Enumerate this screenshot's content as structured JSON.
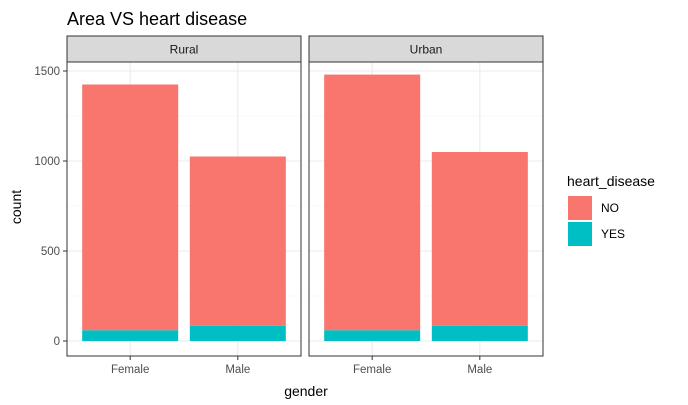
{
  "chart_data": {
    "type": "bar",
    "stacked": true,
    "title": "Area VS heart disease",
    "xlabel": "gender",
    "ylabel": "count",
    "ylim": [
      0,
      1700
    ],
    "yticks": [
      0,
      500,
      1000,
      1500
    ],
    "categories": [
      "Female",
      "Male"
    ],
    "facets": [
      {
        "label": "Rural",
        "series": [
          {
            "name": "YES",
            "values": [
              60,
              85
            ]
          },
          {
            "name": "NO",
            "values": [
              1365,
              940
            ]
          }
        ]
      },
      {
        "label": "Urban",
        "series": [
          {
            "name": "YES",
            "values": [
              60,
              85
            ]
          },
          {
            "name": "NO",
            "values": [
              1420,
              965
            ]
          }
        ]
      }
    ],
    "legend": {
      "title": "heart_disease",
      "position": "right",
      "entries": [
        {
          "name": "NO",
          "color": "#F8766D"
        },
        {
          "name": "YES",
          "color": "#00BFC4"
        }
      ]
    },
    "grid": true,
    "theme": "bw"
  }
}
